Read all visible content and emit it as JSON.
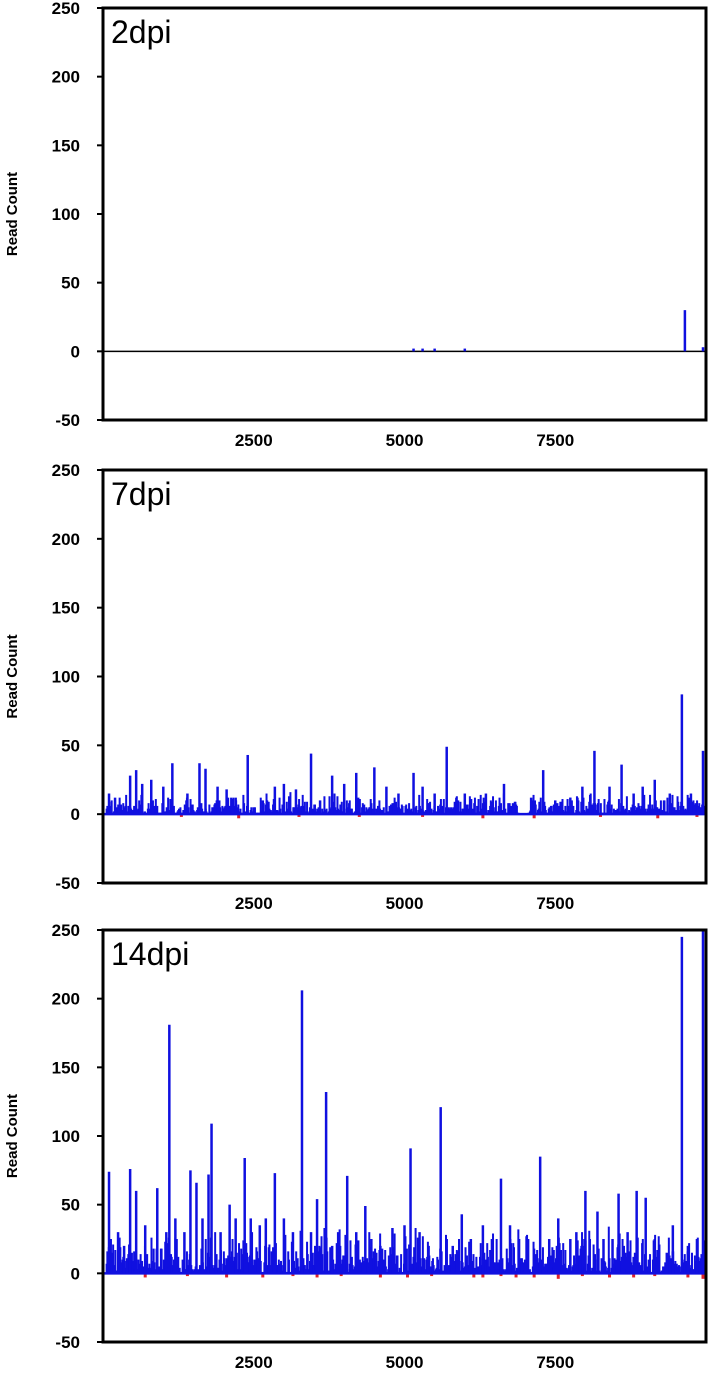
{
  "chart_data": [
    {
      "type": "line",
      "label": "2dpi",
      "ylabel": "Read Count",
      "ylim": [
        -50,
        250
      ],
      "yticks": [
        -50,
        0,
        50,
        100,
        150,
        200,
        250
      ],
      "xlim": [
        0,
        10000
      ],
      "xticks": [
        2500,
        5000,
        7500
      ],
      "colors": {
        "positive": "#1010e0",
        "negative": "#e0202a",
        "baseline": "#000000"
      },
      "spikes": [
        [
          5150,
          2
        ],
        [
          5300,
          2
        ],
        [
          5500,
          2
        ],
        [
          6000,
          2
        ],
        [
          9650,
          30
        ],
        [
          9950,
          3
        ]
      ],
      "neg_spikes": [],
      "noise": null
    },
    {
      "type": "line",
      "label": "7dpi",
      "ylabel": "Read Count",
      "ylim": [
        -50,
        250
      ],
      "yticks": [
        -50,
        0,
        50,
        100,
        150,
        200,
        250
      ],
      "xlim": [
        0,
        10000
      ],
      "xticks": [
        2500,
        5000,
        7500
      ],
      "colors": {
        "positive": "#1010e0",
        "negative": "#e0202a",
        "baseline": "#1010e0"
      },
      "spikes": [
        [
          100,
          15
        ],
        [
          200,
          12
        ],
        [
          450,
          28
        ],
        [
          550,
          32
        ],
        [
          650,
          22
        ],
        [
          800,
          25
        ],
        [
          1000,
          20
        ],
        [
          1150,
          37
        ],
        [
          1400,
          15
        ],
        [
          1600,
          37
        ],
        [
          1700,
          33
        ],
        [
          1900,
          20
        ],
        [
          2050,
          18
        ],
        [
          2200,
          12
        ],
        [
          2400,
          43
        ],
        [
          2650,
          10
        ],
        [
          2850,
          20
        ],
        [
          3000,
          22
        ],
        [
          3200,
          18
        ],
        [
          3450,
          44
        ],
        [
          3600,
          10
        ],
        [
          3800,
          28
        ],
        [
          4000,
          22
        ],
        [
          4200,
          30
        ],
        [
          4500,
          34
        ],
        [
          4700,
          20
        ],
        [
          4900,
          15
        ],
        [
          5150,
          30
        ],
        [
          5300,
          20
        ],
        [
          5500,
          15
        ],
        [
          5700,
          49
        ],
        [
          6000,
          15
        ],
        [
          6350,
          15
        ],
        [
          6650,
          22
        ],
        [
          6800,
          8
        ],
        [
          7100,
          12
        ],
        [
          7300,
          32
        ],
        [
          7500,
          10
        ],
        [
          7750,
          12
        ],
        [
          7950,
          20
        ],
        [
          8150,
          46
        ],
        [
          8400,
          20
        ],
        [
          8600,
          36
        ],
        [
          8800,
          15
        ],
        [
          8950,
          20
        ],
        [
          9150,
          25
        ],
        [
          9400,
          15
        ],
        [
          9600,
          87
        ],
        [
          9750,
          15
        ],
        [
          9950,
          46
        ]
      ],
      "neg_spikes": [
        [
          1300,
          -2
        ],
        [
          2250,
          -3
        ],
        [
          3250,
          -2
        ],
        [
          4250,
          -2
        ],
        [
          5300,
          -2
        ],
        [
          6300,
          -3
        ],
        [
          7150,
          -3
        ],
        [
          8250,
          -2
        ],
        [
          9200,
          -3
        ],
        [
          9850,
          -2
        ]
      ],
      "noise": {
        "amp": 10,
        "gaps": [
          [
            6900,
            7050
          ]
        ]
      }
    },
    {
      "type": "line",
      "label": "14dpi",
      "ylabel": "Read Count",
      "ylim": [
        -50,
        250
      ],
      "yticks": [
        -50,
        0,
        50,
        100,
        150,
        200,
        250
      ],
      "xlim": [
        0,
        10000
      ],
      "xticks": [
        2500,
        5000,
        7500
      ],
      "colors": {
        "positive": "#1010e0",
        "negative": "#e0202a",
        "baseline": "#1010e0"
      },
      "spikes": [
        [
          100,
          74
        ],
        [
          250,
          30
        ],
        [
          350,
          20
        ],
        [
          450,
          76
        ],
        [
          550,
          60
        ],
        [
          700,
          35
        ],
        [
          900,
          62
        ],
        [
          1050,
          30
        ],
        [
          1100,
          181
        ],
        [
          1200,
          40
        ],
        [
          1350,
          30
        ],
        [
          1450,
          75
        ],
        [
          1550,
          66
        ],
        [
          1650,
          40
        ],
        [
          1750,
          72
        ],
        [
          1800,
          109
        ],
        [
          1950,
          30
        ],
        [
          2100,
          50
        ],
        [
          2200,
          40
        ],
        [
          2350,
          84
        ],
        [
          2450,
          40
        ],
        [
          2600,
          35
        ],
        [
          2700,
          40
        ],
        [
          2850,
          73
        ],
        [
          3000,
          40
        ],
        [
          3150,
          30
        ],
        [
          3300,
          206
        ],
        [
          3450,
          30
        ],
        [
          3550,
          54
        ],
        [
          3700,
          132
        ],
        [
          3800,
          20
        ],
        [
          3900,
          30
        ],
        [
          4050,
          71
        ],
        [
          4200,
          30
        ],
        [
          4350,
          49
        ],
        [
          4450,
          25
        ],
        [
          4600,
          20
        ],
        [
          4800,
          33
        ],
        [
          5000,
          35
        ],
        [
          5100,
          91
        ],
        [
          5250,
          30
        ],
        [
          5400,
          20
        ],
        [
          5600,
          121
        ],
        [
          5700,
          25
        ],
        [
          5800,
          20
        ],
        [
          5950,
          43
        ],
        [
          6100,
          25
        ],
        [
          6300,
          35
        ],
        [
          6450,
          25
        ],
        [
          6600,
          69
        ],
        [
          6750,
          35
        ],
        [
          6900,
          25
        ],
        [
          7050,
          25
        ],
        [
          7250,
          85
        ],
        [
          7400,
          25
        ],
        [
          7550,
          40
        ],
        [
          7750,
          25
        ],
        [
          7850,
          30
        ],
        [
          8000,
          60
        ],
        [
          8200,
          45
        ],
        [
          8300,
          25
        ],
        [
          8450,
          25
        ],
        [
          8550,
          58
        ],
        [
          8700,
          30
        ],
        [
          8850,
          60
        ],
        [
          9000,
          55
        ],
        [
          9150,
          25
        ],
        [
          9350,
          15
        ],
        [
          9450,
          35
        ],
        [
          9600,
          245
        ],
        [
          9700,
          20
        ],
        [
          9850,
          25
        ],
        [
          9950,
          250
        ],
        [
          10000,
          20
        ]
      ],
      "neg_spikes": [
        [
          700,
          -3
        ],
        [
          1400,
          -2
        ],
        [
          2050,
          -3
        ],
        [
          2650,
          -3
        ],
        [
          3150,
          -2
        ],
        [
          3550,
          -3
        ],
        [
          3950,
          -2
        ],
        [
          4600,
          -3
        ],
        [
          5050,
          -3
        ],
        [
          5450,
          -2
        ],
        [
          6150,
          -3
        ],
        [
          6300,
          -3
        ],
        [
          6600,
          -2
        ],
        [
          6850,
          -3
        ],
        [
          7150,
          -3
        ],
        [
          7550,
          -4
        ],
        [
          7950,
          -2
        ],
        [
          8400,
          -3
        ],
        [
          8800,
          -3
        ],
        [
          9150,
          -2
        ],
        [
          9700,
          -3
        ],
        [
          9950,
          -4
        ]
      ],
      "noise": {
        "amp": 22,
        "gaps": []
      }
    }
  ]
}
